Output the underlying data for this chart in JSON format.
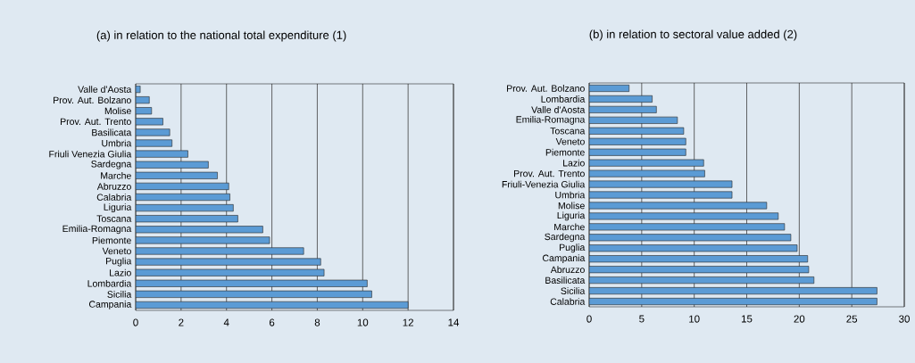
{
  "chart_data": [
    {
      "type": "bar",
      "orientation": "horizontal",
      "title": "(a) in relation to the national total expenditure (1)",
      "categories": [
        "Valle d'Aosta",
        "Prov. Aut. Bolzano",
        "Molise",
        "Prov. Aut. Trento",
        "Basilicata",
        "Umbria",
        "Friuli Venezia Giulia",
        "Sardegna",
        "Marche",
        "Abruzzo",
        "Calabria",
        "Liguria",
        "Toscana",
        "Emilia-Romagna",
        "Piemonte",
        "Veneto",
        "Puglia",
        "Lazio",
        "Lombardia",
        "Sicilia",
        "Campania"
      ],
      "values": [
        0.2,
        0.6,
        0.7,
        1.2,
        1.5,
        1.6,
        2.3,
        3.2,
        3.6,
        4.1,
        4.15,
        4.3,
        4.5,
        5.6,
        5.9,
        7.4,
        8.15,
        8.3,
        10.2,
        10.4,
        12.0
      ],
      "color": "#5b9bd5",
      "xlim": [
        0,
        14
      ],
      "xticks": [
        0,
        2,
        4,
        6,
        8,
        10,
        12,
        14
      ],
      "grid": "x"
    },
    {
      "type": "bar",
      "orientation": "horizontal",
      "title": "(b) in relation to sectoral value added (2)",
      "categories": [
        "Prov. Aut. Bolzano",
        "Lombardia",
        "Valle d'Aosta",
        "Emilia-Romagna",
        "Toscana",
        "Veneto",
        "Piemonte",
        "Lazio",
        "Prov. Aut. Trento",
        "Friuli-Venezia Giulia",
        "Umbria",
        "Molise",
        "Liguria",
        "Marche",
        "Sardegna",
        "Puglia",
        "Campania",
        "Abruzzo",
        "Basilicata",
        "Sicilia",
        "Calabria"
      ],
      "values": [
        3.8,
        6.0,
        6.4,
        8.4,
        9.0,
        9.2,
        9.2,
        10.9,
        11.0,
        13.6,
        13.6,
        16.9,
        18.0,
        18.6,
        19.2,
        19.8,
        20.8,
        20.9,
        21.4,
        27.4,
        27.4
      ],
      "color": "#5b9bd5",
      "xlim": [
        0,
        30
      ],
      "xticks": [
        0,
        5,
        10,
        15,
        20,
        25,
        30
      ],
      "grid": "x"
    }
  ]
}
